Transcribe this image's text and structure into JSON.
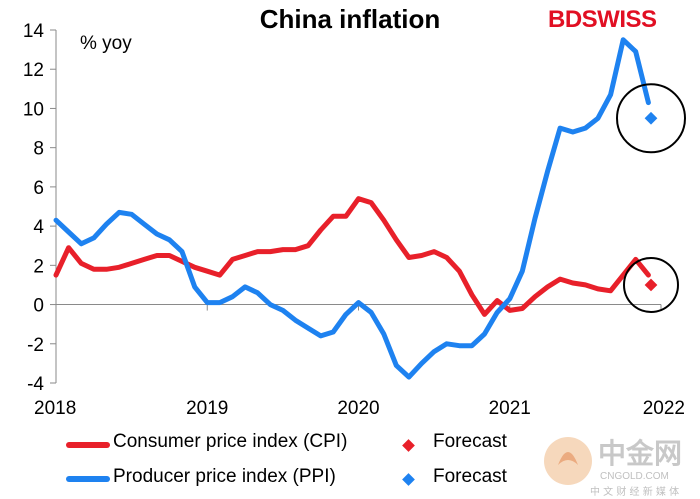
{
  "title": "China inflation",
  "unit_label": "% yoy",
  "brand": {
    "part1": "BD",
    "part2": "SWISS"
  },
  "watermark": {
    "cn": "中金网",
    "url": "CNGOLD.COM",
    "sub": "中 文 财 经 新 媒 体"
  },
  "colors": {
    "cpi": "#e8202a",
    "ppi": "#1e82f0",
    "ring": "#000000"
  },
  "legend": [
    {
      "label": "Consumer price index (CPI)",
      "series": "cpi"
    },
    {
      "label": "Forecast",
      "series": "cpi_forecast"
    },
    {
      "label": "Producer price index (PPI)",
      "series": "ppi"
    },
    {
      "label": "Forecast",
      "series": "ppi_forecast"
    }
  ],
  "chart_data": {
    "type": "line",
    "title": "China inflation",
    "ylabel": "% yoy",
    "xlabel": "",
    "xlim": [
      2018.0,
      2022.0
    ],
    "ylim": [
      -4,
      14
    ],
    "x_ticks": [
      "2018",
      "2019",
      "2020",
      "2021",
      "2022"
    ],
    "y_ticks": [
      -4,
      -2,
      0,
      2,
      4,
      6,
      8,
      10,
      12,
      14
    ],
    "grid": false,
    "legend_position": "bottom",
    "series": [
      {
        "name": "Consumer price index (CPI)",
        "key": "cpi",
        "x": [
          2018.0,
          2018.083,
          2018.167,
          2018.25,
          2018.333,
          2018.417,
          2018.5,
          2018.583,
          2018.667,
          2018.75,
          2018.833,
          2018.917,
          2019.0,
          2019.083,
          2019.167,
          2019.25,
          2019.333,
          2019.417,
          2019.5,
          2019.583,
          2019.667,
          2019.75,
          2019.833,
          2019.917,
          2020.0,
          2020.083,
          2020.167,
          2020.25,
          2020.333,
          2020.417,
          2020.5,
          2020.583,
          2020.667,
          2020.75,
          2020.833,
          2020.917,
          2021.0,
          2021.083,
          2021.167,
          2021.25,
          2021.333,
          2021.417,
          2021.5,
          2021.583,
          2021.667,
          2021.75,
          2021.833,
          2021.917
        ],
        "values": [
          1.5,
          2.9,
          2.1,
          1.8,
          1.8,
          1.9,
          2.1,
          2.3,
          2.5,
          2.5,
          2.2,
          1.9,
          1.7,
          1.5,
          2.3,
          2.5,
          2.7,
          2.7,
          2.8,
          2.8,
          3.0,
          3.8,
          4.5,
          4.5,
          5.4,
          5.2,
          4.3,
          3.3,
          2.4,
          2.5,
          2.7,
          2.4,
          1.7,
          0.5,
          -0.5,
          0.2,
          -0.3,
          -0.2,
          0.4,
          0.9,
          1.3,
          1.1,
          1.0,
          0.8,
          0.7,
          1.5,
          2.3,
          1.5
        ]
      },
      {
        "name": "Forecast",
        "key": "cpi_forecast",
        "x": [
          2022.0
        ],
        "values": [
          1.0
        ]
      },
      {
        "name": "Producer price index (PPI)",
        "key": "ppi",
        "x": [
          2018.0,
          2018.083,
          2018.167,
          2018.25,
          2018.333,
          2018.417,
          2018.5,
          2018.583,
          2018.667,
          2018.75,
          2018.833,
          2018.917,
          2019.0,
          2019.083,
          2019.167,
          2019.25,
          2019.333,
          2019.417,
          2019.5,
          2019.583,
          2019.667,
          2019.75,
          2019.833,
          2019.917,
          2020.0,
          2020.083,
          2020.167,
          2020.25,
          2020.333,
          2020.417,
          2020.5,
          2020.583,
          2020.667,
          2020.75,
          2020.833,
          2020.917,
          2021.0,
          2021.083,
          2021.167,
          2021.25,
          2021.333,
          2021.417,
          2021.5,
          2021.583,
          2021.667,
          2021.75,
          2021.833,
          2021.917
        ],
        "values": [
          4.3,
          3.7,
          3.1,
          3.4,
          4.1,
          4.7,
          4.6,
          4.1,
          3.6,
          3.3,
          2.7,
          0.9,
          0.1,
          0.1,
          0.4,
          0.9,
          0.6,
          0.0,
          -0.3,
          -0.8,
          -1.2,
          -1.6,
          -1.4,
          -0.5,
          0.1,
          -0.4,
          -1.5,
          -3.1,
          -3.7,
          -3.0,
          -2.4,
          -2.0,
          -2.1,
          -2.1,
          -1.5,
          -0.4,
          0.3,
          1.7,
          4.4,
          6.8,
          9.0,
          8.8,
          9.0,
          9.5,
          10.7,
          13.5,
          12.9,
          10.3
        ]
      },
      {
        "name": "Forecast",
        "key": "ppi_forecast",
        "x": [
          2022.0
        ],
        "values": [
          9.5
        ]
      }
    ]
  }
}
